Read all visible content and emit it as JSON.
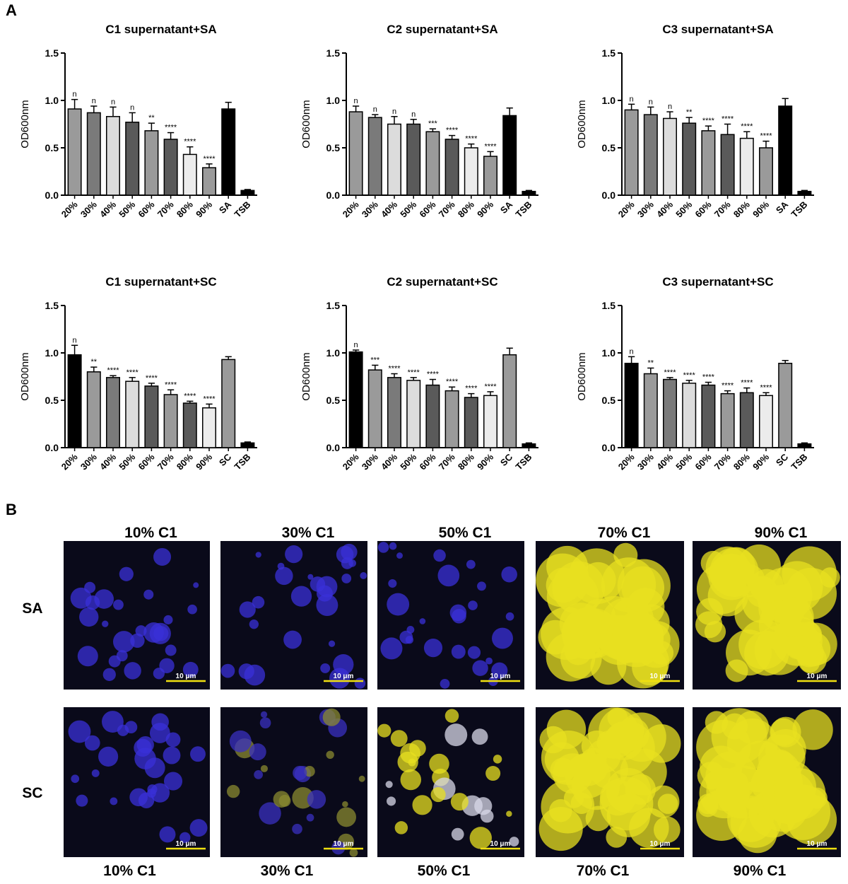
{
  "panel_a": {
    "label": "A"
  },
  "chart_data": [
    {
      "type": "bar",
      "title": "C1 supernatant+SA",
      "y_label": "OD600nm",
      "categories": [
        "20%",
        "30%",
        "40%",
        "50%",
        "60%",
        "70%",
        "80%",
        "90%",
        "SA",
        "TSB"
      ],
      "values": [
        0.91,
        0.87,
        0.83,
        0.77,
        0.68,
        0.59,
        0.43,
        0.29,
        0.91,
        0.05
      ],
      "errors": [
        0.1,
        0.07,
        0.1,
        0.1,
        0.08,
        0.07,
        0.08,
        0.04,
        0.07,
        0.01
      ],
      "annotations": [
        "n",
        "n",
        "n",
        "n",
        "**",
        "****",
        "****",
        "****",
        null,
        null
      ],
      "colors": [
        "#9a9a9a",
        "#7a7a7a",
        "#dcdcdc",
        "#5a5a5a",
        "#9a9a9a",
        "#5a5a5a",
        "#ececec",
        "#9a9a9a",
        "#000000",
        "#000000"
      ],
      "ylim": [
        0,
        1.5
      ],
      "yticks": [
        {
          "value": 0,
          "label": "0.0"
        },
        {
          "value": 0.5,
          "label": "0.5"
        },
        {
          "value": 1,
          "label": "1.0"
        },
        {
          "value": 1.5,
          "label": "1.5"
        }
      ]
    },
    {
      "type": "bar",
      "title": "C2 supernatant+SA",
      "y_label": "OD600nm",
      "categories": [
        "20%",
        "30%",
        "40%",
        "50%",
        "60%",
        "70%",
        "80%",
        "90%",
        "SA",
        "TSB"
      ],
      "values": [
        0.88,
        0.82,
        0.75,
        0.75,
        0.67,
        0.59,
        0.5,
        0.41,
        0.84,
        0.04
      ],
      "errors": [
        0.06,
        0.03,
        0.08,
        0.05,
        0.03,
        0.04,
        0.04,
        0.05,
        0.08,
        0.01
      ],
      "annotations": [
        "n",
        "n",
        "n",
        "n",
        "***",
        "****",
        "****",
        "****",
        null,
        null
      ],
      "colors": [
        "#9a9a9a",
        "#7a7a7a",
        "#dcdcdc",
        "#5a5a5a",
        "#9a9a9a",
        "#5a5a5a",
        "#ececec",
        "#9a9a9a",
        "#000000",
        "#000000"
      ],
      "ylim": [
        0,
        1.5
      ],
      "yticks": [
        {
          "value": 0,
          "label": "0.0"
        },
        {
          "value": 0.5,
          "label": "0.5"
        },
        {
          "value": 1,
          "label": "1.0"
        },
        {
          "value": 1.5,
          "label": "1.5"
        }
      ]
    },
    {
      "type": "bar",
      "title": "C3 supernatant+SA",
      "y_label": "OD600nm",
      "categories": [
        "20%",
        "30%",
        "40%",
        "50%",
        "60%",
        "70%",
        "80%",
        "90%",
        "SA",
        "TSB"
      ],
      "values": [
        0.9,
        0.85,
        0.81,
        0.76,
        0.68,
        0.64,
        0.6,
        0.5,
        0.94,
        0.04
      ],
      "errors": [
        0.06,
        0.08,
        0.07,
        0.06,
        0.05,
        0.11,
        0.07,
        0.07,
        0.08,
        0.01
      ],
      "annotations": [
        "n",
        "n",
        "n",
        "**",
        "****",
        "****",
        "****",
        "****",
        null,
        null
      ],
      "colors": [
        "#9a9a9a",
        "#7a7a7a",
        "#dcdcdc",
        "#5a5a5a",
        "#9a9a9a",
        "#5a5a5a",
        "#ececec",
        "#9a9a9a",
        "#000000",
        "#000000"
      ],
      "ylim": [
        0,
        1.5
      ],
      "yticks": [
        {
          "value": 0,
          "label": "0.0"
        },
        {
          "value": 0.5,
          "label": "0.5"
        },
        {
          "value": 1,
          "label": "1.0"
        },
        {
          "value": 1.5,
          "label": "1.5"
        }
      ]
    },
    {
      "type": "bar",
      "title": "C1 supernatant+SC",
      "y_label": "OD600nm",
      "categories": [
        "20%",
        "30%",
        "40%",
        "50%",
        "60%",
        "70%",
        "80%",
        "90%",
        "SC",
        "TSB"
      ],
      "values": [
        0.98,
        0.8,
        0.74,
        0.7,
        0.65,
        0.56,
        0.47,
        0.42,
        0.93,
        0.05
      ],
      "errors": [
        0.1,
        0.05,
        0.02,
        0.04,
        0.03,
        0.05,
        0.02,
        0.04,
        0.03,
        0.01
      ],
      "annotations": [
        "n",
        "**",
        "****",
        "****",
        "****",
        "****",
        "****",
        "****",
        null,
        null
      ],
      "colors": [
        "#000000",
        "#9a9a9a",
        "#7a7a7a",
        "#dcdcdc",
        "#5a5a5a",
        "#9a9a9a",
        "#5a5a5a",
        "#ececec",
        "#9a9a9a",
        "#000000"
      ],
      "ylim": [
        0,
        1.5
      ],
      "yticks": [
        {
          "value": 0,
          "label": "0.0"
        },
        {
          "value": 0.5,
          "label": "0.5"
        },
        {
          "value": 1,
          "label": "1.0"
        },
        {
          "value": 1.5,
          "label": "1.5"
        }
      ]
    },
    {
      "type": "bar",
      "title": "C2 supernatant+SC",
      "y_label": "OD600nm",
      "categories": [
        "20%",
        "30%",
        "40%",
        "50%",
        "60%",
        "70%",
        "80%",
        "90%",
        "SC",
        "TSB"
      ],
      "values": [
        1.01,
        0.82,
        0.74,
        0.71,
        0.66,
        0.6,
        0.53,
        0.55,
        0.98,
        0.04
      ],
      "errors": [
        0.02,
        0.05,
        0.04,
        0.03,
        0.06,
        0.04,
        0.04,
        0.04,
        0.07,
        0.01
      ],
      "annotations": [
        "n",
        "***",
        "****",
        "****",
        "****",
        "****",
        "****",
        "****",
        null,
        null
      ],
      "colors": [
        "#000000",
        "#9a9a9a",
        "#7a7a7a",
        "#dcdcdc",
        "#5a5a5a",
        "#9a9a9a",
        "#5a5a5a",
        "#ececec",
        "#9a9a9a",
        "#000000"
      ],
      "ylim": [
        0,
        1.5
      ],
      "yticks": [
        {
          "value": 0,
          "label": "0.0"
        },
        {
          "value": 0.5,
          "label": "0.5"
        },
        {
          "value": 1,
          "label": "1.0"
        },
        {
          "value": 1.5,
          "label": "1.5"
        }
      ]
    },
    {
      "type": "bar",
      "title": "C3 supernatant+SC",
      "y_label": "OD600nm",
      "categories": [
        "20%",
        "30%",
        "40%",
        "50%",
        "60%",
        "70%",
        "80%",
        "90%",
        "SC",
        "TSB"
      ],
      "values": [
        0.89,
        0.78,
        0.72,
        0.68,
        0.66,
        0.57,
        0.58,
        0.55,
        0.89,
        0.04
      ],
      "errors": [
        0.07,
        0.06,
        0.02,
        0.03,
        0.03,
        0.03,
        0.05,
        0.03,
        0.03,
        0.01
      ],
      "annotations": [
        "n",
        "**",
        "****",
        "****",
        "****",
        "****",
        "****",
        "****",
        null,
        null
      ],
      "colors": [
        "#000000",
        "#9a9a9a",
        "#7a7a7a",
        "#dcdcdc",
        "#5a5a5a",
        "#9a9a9a",
        "#5a5a5a",
        "#ececec",
        "#9a9a9a",
        "#000000"
      ],
      "ylim": [
        0,
        1.5
      ],
      "yticks": [
        {
          "value": 0,
          "label": "0.0"
        },
        {
          "value": 0.5,
          "label": "0.5"
        },
        {
          "value": 1,
          "label": "1.0"
        },
        {
          "value": 1.5,
          "label": "1.5"
        }
      ]
    }
  ],
  "panel_b": {
    "label": "B",
    "top_labels": [
      "10% C1",
      "30% C1",
      "50% C1",
      "70% C1",
      "90% C1"
    ],
    "row_labels": [
      "SA",
      "SC"
    ],
    "bottom_labels": [
      "10% C1",
      "30% C1",
      "50% C1",
      "70% C1",
      "90% C1"
    ],
    "scale_bar": "10 μm"
  }
}
